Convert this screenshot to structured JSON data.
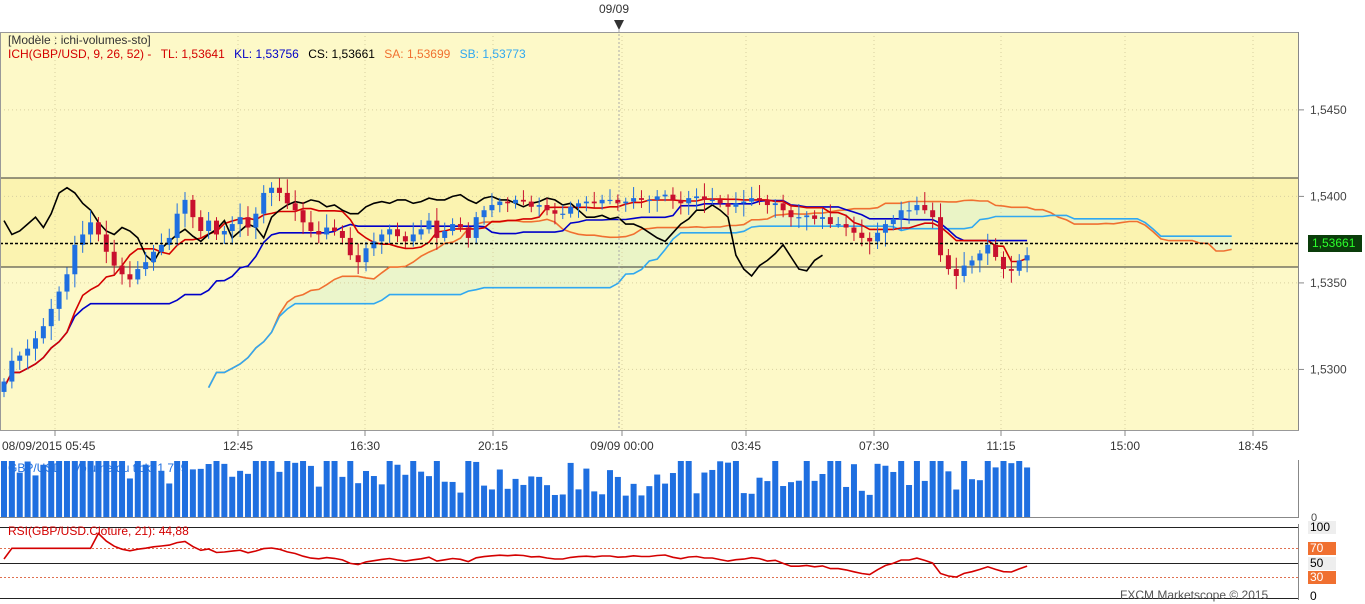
{
  "header": {
    "top_date_marker": "09/09",
    "model_label": "[Modèle : ichi-volumes-sto]",
    "ich_label": "ICH(GBP/USD, 9, 26, 52) -",
    "tl": "TL: 1,53641",
    "kl": "KL: 1,53756",
    "cs": "CS: 1,53661",
    "sa": "SA: 1,53699",
    "sb": "SB: 1,53773"
  },
  "colors": {
    "tenkan": "#d40000",
    "kijun": "#0000c8",
    "chikou": "#000000",
    "senkou_a": "#f07030",
    "senkou_b": "#30a8f0",
    "bull": "#1f6fe0",
    "bear": "#c8102e",
    "panel_bg": "#fdf9c8",
    "cloud": "#e6f4cc"
  },
  "current_price": "1,53661",
  "volume_panel": {
    "label": "GBP/USD - Volume du tick: 1 769",
    "zero_label": "0"
  },
  "rsi_panel": {
    "label": "RSI(GBP/USD.Cloture, 21): 44,88",
    "levels": [
      "100",
      "70",
      "50",
      "30",
      "0"
    ]
  },
  "footer": {
    "copyright": "FXCM Marketscope © 2015"
  },
  "chart_data": {
    "type": "candlestick",
    "symbol": "GBP/USD",
    "x_labels": [
      "08/09/2015 05:45",
      "12:45",
      "16:30",
      "20:15",
      "09/09 00:00",
      "03:45",
      "07:30",
      "11:15",
      "15:00",
      "18:45"
    ],
    "y_ticks": [
      "1,5450",
      "1,5400",
      "1,5350",
      "1,5300"
    ],
    "y_tick_values": [
      1.545,
      1.54,
      1.535,
      1.53
    ],
    "ylim": [
      1.5265,
      1.5495
    ],
    "close_series": [
      1.5293,
      1.5305,
      1.5308,
      1.5312,
      1.5318,
      1.5325,
      1.5335,
      1.5345,
      1.5355,
      1.5372,
      1.5378,
      1.5385,
      1.5378,
      1.5368,
      1.536,
      1.5355,
      1.5352,
      1.5358,
      1.5362,
      1.5368,
      1.5372,
      1.5376,
      1.539,
      1.5398,
      1.5388,
      1.538,
      1.5386,
      1.5378,
      1.538,
      1.5384,
      1.5388,
      1.5382,
      1.539,
      1.5402,
      1.5405,
      1.5402,
      1.5396,
      1.5392,
      1.5385,
      1.538,
      1.5378,
      1.5382,
      1.538,
      1.5376,
      1.5366,
      1.5362,
      1.537,
      1.5374,
      1.5378,
      1.5381,
      1.5377,
      1.5374,
      1.5378,
      1.5381,
      1.5386,
      1.5376,
      1.538,
      1.5384,
      1.5382,
      1.5376,
      1.5388,
      1.5392,
      1.5395,
      1.5397,
      1.5396,
      1.5398,
      1.5397,
      1.5394,
      1.5395,
      1.5392,
      1.539,
      1.539,
      1.5394,
      1.5396,
      1.5397,
      1.5396,
      1.5398,
      1.5398,
      1.5396,
      1.5397,
      1.5399,
      1.5398,
      1.5398,
      1.54,
      1.5401,
      1.5398,
      1.5396,
      1.5399,
      1.54,
      1.5398,
      1.5398,
      1.5396,
      1.5394,
      1.5396,
      1.5397,
      1.5399,
      1.5398,
      1.5395,
      1.5396,
      1.5392,
      1.5388,
      1.5388,
      1.5389,
      1.5387,
      1.5388,
      1.5384,
      1.5384,
      1.5382,
      1.5379,
      1.5376,
      1.5374,
      1.5379,
      1.5384,
      1.5387,
      1.5392,
      1.5392,
      1.5395,
      1.5392,
      1.5388,
      1.5366,
      1.5358,
      1.5354,
      1.536,
      1.5363,
      1.5367,
      1.5372,
      1.5365,
      1.5358,
      1.5357,
      1.5363,
      1.5366
    ],
    "tenkan_last": 1.53641,
    "kijun_last": 1.53756,
    "chikou_last": 1.53661,
    "senkou_a_last": 1.53699,
    "senkou_b_last": 1.53773,
    "volume_last": 1769,
    "volume_ylim": [
      0,
      2000
    ],
    "rsi_last": 44.88,
    "rsi_levels": [
      100,
      70,
      50,
      30,
      0
    ]
  }
}
